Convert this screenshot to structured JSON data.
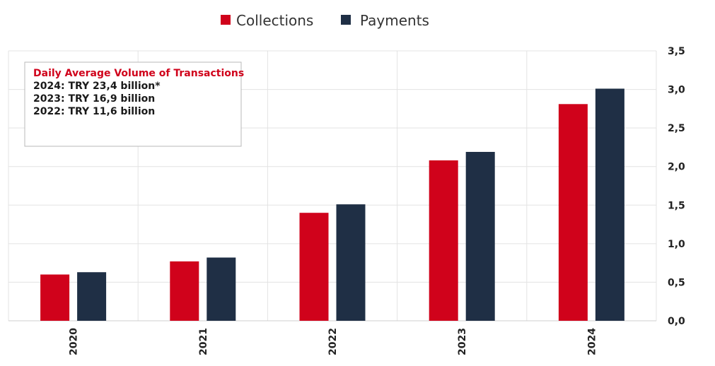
{
  "chart_data": {
    "type": "bar",
    "categories": [
      "2020",
      "2021",
      "2022",
      "2023",
      "2024"
    ],
    "series": [
      {
        "name": "Collections",
        "color": "#d0021b",
        "values": [
          0.6,
          0.77,
          1.4,
          2.08,
          2.81
        ]
      },
      {
        "name": "Payments",
        "color": "#1f2f45",
        "values": [
          0.63,
          0.82,
          1.51,
          2.19,
          3.01
        ]
      }
    ],
    "yticks": [
      "0,0",
      "0,5",
      "1,0",
      "1,5",
      "2,0",
      "2,5",
      "3,0",
      "3,5"
    ],
    "ylim": [
      0,
      3.5
    ],
    "y_axis_position": "right",
    "grid": true,
    "legend_position": "top-center",
    "annotation": {
      "title": "Daily Average Volume of Transactions",
      "lines": [
        "2024: TRY 23,4 billion*",
        "2023: TRY 16,9 billion",
        "2022: TRY 11,6 billion"
      ]
    }
  }
}
